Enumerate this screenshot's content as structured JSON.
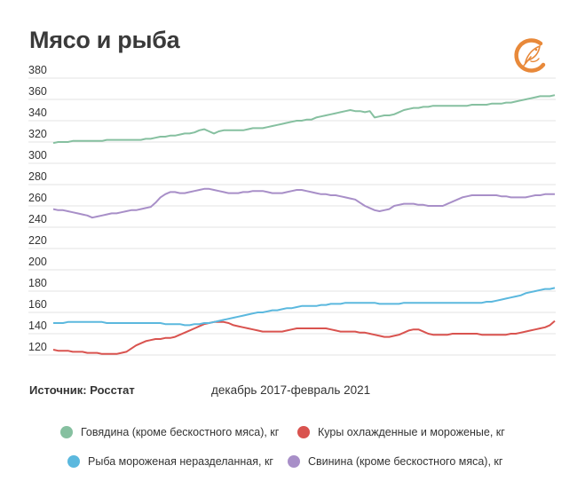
{
  "header": {
    "title": "Мясо и рыба"
  },
  "footer": {
    "source": "Источник: Росстат",
    "period": "декабрь 2017-февраль 2021"
  },
  "colors": {
    "beef": "#86c0a0",
    "chicken": "#d9534f",
    "fish": "#5bb8de",
    "pork": "#a88fc8",
    "logo": "#e8893a"
  },
  "icons": {
    "logo": "bird-logo-icon"
  },
  "chart_data": {
    "type": "line",
    "title": "Мясо и рыба",
    "ylim": [
      100,
      380
    ],
    "yticks": [
      120,
      140,
      160,
      180,
      200,
      220,
      240,
      260,
      280,
      300,
      320,
      340,
      360,
      380
    ],
    "grid": true,
    "legend_position": "bottom",
    "series": [
      {
        "name": "Говядина (кроме бескостного мяса), кг",
        "color": "#86c0a0",
        "values": [
          319,
          320,
          320,
          320,
          321,
          321,
          321,
          321,
          321,
          321,
          321,
          322,
          322,
          322,
          322,
          322,
          322,
          322,
          322,
          323,
          323,
          324,
          325,
          325,
          326,
          326,
          327,
          328,
          328,
          329,
          331,
          332,
          330,
          328,
          330,
          331,
          331,
          331,
          331,
          331,
          332,
          333,
          333,
          333,
          334,
          335,
          336,
          337,
          338,
          339,
          340,
          340,
          341,
          341,
          343,
          344,
          345,
          346,
          347,
          348,
          349,
          350,
          349,
          349,
          348,
          349,
          343,
          344,
          345,
          345,
          346,
          348,
          350,
          351,
          352,
          352,
          353,
          353,
          354,
          354,
          354,
          354,
          354,
          354,
          354,
          354,
          355,
          355,
          355,
          355,
          356,
          356,
          356,
          357,
          357,
          358,
          359,
          360,
          361,
          362,
          363,
          363,
          363,
          364
        ]
      },
      {
        "name": "Куры охлажденные и мороженые, кг",
        "color": "#d9534f",
        "values": [
          125,
          124,
          124,
          124,
          123,
          123,
          123,
          122,
          122,
          122,
          121,
          121,
          121,
          121,
          122,
          123,
          126,
          129,
          131,
          133,
          134,
          135,
          135,
          136,
          136,
          137,
          139,
          141,
          143,
          145,
          147,
          149,
          150,
          151,
          151,
          151,
          150,
          148,
          147,
          146,
          145,
          144,
          143,
          142,
          142,
          142,
          142,
          142,
          143,
          144,
          145,
          145,
          145,
          145,
          145,
          145,
          145,
          144,
          143,
          142,
          142,
          142,
          142,
          141,
          141,
          140,
          139,
          138,
          137,
          137,
          138,
          139,
          141,
          143,
          144,
          144,
          142,
          140,
          139,
          139,
          139,
          139,
          140,
          140,
          140,
          140,
          140,
          140,
          139,
          139,
          139,
          139,
          139,
          139,
          140,
          140,
          141,
          142,
          143,
          144,
          145,
          146,
          148,
          152
        ]
      },
      {
        "name": "Рыба мороженая неразделанная, кг",
        "color": "#5bb8de",
        "values": [
          150,
          150,
          150,
          151,
          151,
          151,
          151,
          151,
          151,
          151,
          151,
          150,
          150,
          150,
          150,
          150,
          150,
          150,
          150,
          150,
          150,
          150,
          150,
          149,
          149,
          149,
          149,
          148,
          148,
          149,
          149,
          150,
          150,
          151,
          152,
          153,
          154,
          155,
          156,
          157,
          158,
          159,
          160,
          160,
          161,
          162,
          162,
          163,
          164,
          164,
          165,
          166,
          166,
          166,
          166,
          167,
          167,
          168,
          168,
          168,
          169,
          169,
          169,
          169,
          169,
          169,
          169,
          168,
          168,
          168,
          168,
          168,
          169,
          169,
          169,
          169,
          169,
          169,
          169,
          169,
          169,
          169,
          169,
          169,
          169,
          169,
          169,
          169,
          169,
          170,
          170,
          171,
          172,
          173,
          174,
          175,
          176,
          178,
          179,
          180,
          181,
          182,
          182,
          183
        ]
      },
      {
        "name": "Свинина (кроме бескостного мяса), кг",
        "color": "#a88fc8",
        "values": [
          257,
          256,
          256,
          255,
          254,
          253,
          252,
          251,
          249,
          250,
          251,
          252,
          253,
          253,
          254,
          255,
          256,
          256,
          257,
          258,
          259,
          263,
          268,
          271,
          273,
          273,
          272,
          272,
          273,
          274,
          275,
          276,
          276,
          275,
          274,
          273,
          272,
          272,
          272,
          273,
          273,
          274,
          274,
          274,
          273,
          272,
          272,
          272,
          273,
          274,
          275,
          275,
          274,
          273,
          272,
          271,
          271,
          270,
          270,
          269,
          268,
          267,
          266,
          263,
          260,
          258,
          256,
          255,
          256,
          257,
          260,
          261,
          262,
          262,
          262,
          261,
          261,
          260,
          260,
          260,
          260,
          262,
          264,
          266,
          268,
          269,
          270,
          270,
          270,
          270,
          270,
          270,
          269,
          269,
          268,
          268,
          268,
          268,
          269,
          270,
          270,
          271,
          271,
          271
        ]
      }
    ]
  }
}
